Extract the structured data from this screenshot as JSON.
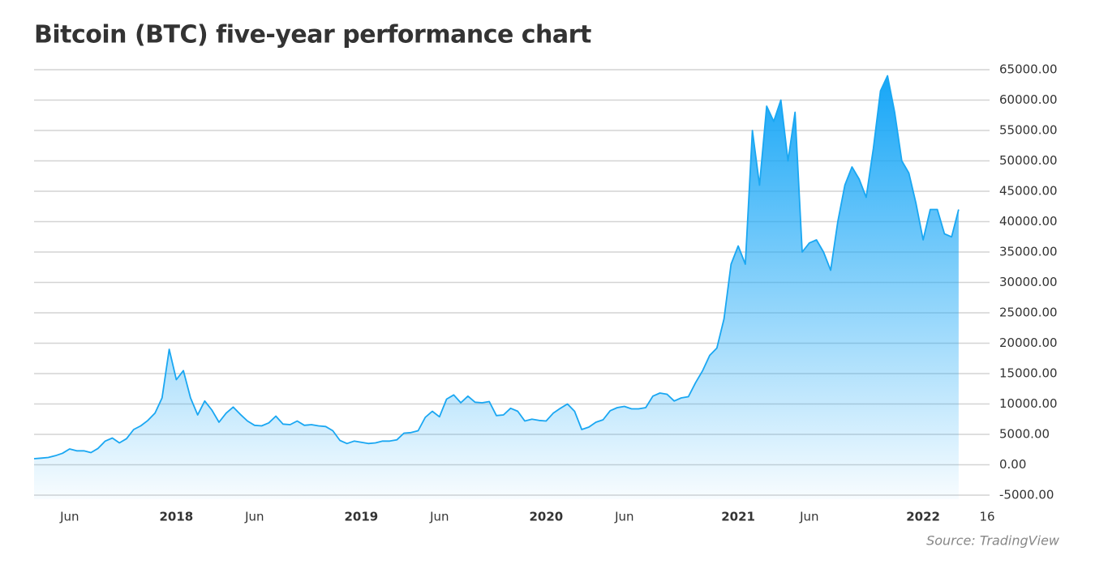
{
  "chart_data": {
    "type": "area",
    "title": "Bitcoin (BTC) five-year performance chart",
    "source": "Source: TradingView",
    "color": "#1aa7f2",
    "categories": [
      null,
      null,
      null,
      null,
      null,
      "Jun",
      null,
      null,
      null,
      null,
      null,
      null,
      null,
      null,
      null,
      null,
      null,
      null,
      null,
      null,
      "2018",
      null,
      null,
      null,
      null,
      null,
      null,
      null,
      null,
      null,
      null,
      "Jun",
      null,
      null,
      null,
      null,
      null,
      null,
      null,
      null,
      null,
      null,
      null,
      null,
      null,
      null,
      "2019",
      null,
      null,
      null,
      null,
      null,
      null,
      null,
      null,
      null,
      null,
      "Jun",
      null,
      null,
      null,
      null,
      null,
      null,
      null,
      null,
      null,
      null,
      null,
      null,
      null,
      null,
      "2020",
      null,
      null,
      null,
      null,
      null,
      null,
      null,
      null,
      null,
      null,
      "Jun",
      null,
      null,
      null,
      null,
      null,
      null,
      null,
      null,
      null,
      null,
      null,
      null,
      null,
      null,
      null,
      "2021",
      null,
      null,
      null,
      null,
      null,
      null,
      null,
      null,
      null,
      "Jun",
      null,
      null,
      null,
      null,
      null,
      null,
      null,
      null,
      null,
      null,
      null,
      null,
      null,
      null,
      null,
      "2022",
      null,
      null,
      null,
      null,
      null,
      null,
      null,
      null,
      "16"
    ],
    "values": [
      1000,
      1100,
      1200,
      1500,
      1900,
      2600,
      2300,
      2300,
      2000,
      2700,
      3900,
      4400,
      3600,
      4300,
      5800,
      6400,
      7300,
      8500,
      11000,
      19000,
      14000,
      15500,
      11000,
      8200,
      10500,
      9000,
      7000,
      8500,
      9500,
      8300,
      7200,
      6500,
      6400,
      6900,
      8000,
      6700,
      6600,
      7200,
      6500,
      6600,
      6400,
      6300,
      5600,
      4000,
      3500,
      3900,
      3700,
      3500,
      3600,
      3900,
      3900,
      4100,
      5200,
      5300,
      5600,
      7800,
      8800,
      7900,
      10800,
      11500,
      10200,
      11300,
      10300,
      10200,
      10400,
      8100,
      8200,
      9300,
      8800,
      7200,
      7500,
      7300,
      7200,
      8500,
      9300,
      10000,
      8800,
      5800,
      6200,
      7000,
      7400,
      8900,
      9400,
      9600,
      9200,
      9200,
      9400,
      11300,
      11800,
      11600,
      10500,
      11000,
      11200,
      13500,
      15500,
      18000,
      19200,
      24000,
      33000,
      36000,
      33000,
      55000,
      46000,
      59000,
      56500,
      60000,
      50000,
      58000,
      35000,
      36500,
      37000,
      35000,
      32000,
      40000,
      46000,
      49000,
      47000,
      44000,
      52000,
      61500,
      64000,
      58000,
      50000,
      48000,
      43000,
      37000,
      42000,
      42000,
      38000,
      37500,
      42000,
      null,
      null,
      null,
      null
    ],
    "ylim": [
      -5000,
      65000
    ],
    "yticks": [
      {
        "value": -5000,
        "label": "-5000.00"
      },
      {
        "value": 0,
        "label": "0.00"
      },
      {
        "value": 5000,
        "label": "5000.00"
      },
      {
        "value": 10000,
        "label": "10000.00"
      },
      {
        "value": 15000,
        "label": "15000.00"
      },
      {
        "value": 20000,
        "label": "20000.00"
      },
      {
        "value": 25000,
        "label": "25000.00"
      },
      {
        "value": 30000,
        "label": "30000.00"
      },
      {
        "value": 35000,
        "label": "35000.00"
      },
      {
        "value": 40000,
        "label": "40000.00"
      },
      {
        "value": 45000,
        "label": "45000.00"
      },
      {
        "value": 50000,
        "label": "50000.00"
      },
      {
        "value": 55000,
        "label": "55000.00"
      },
      {
        "value": 60000,
        "label": "60000.00"
      },
      {
        "value": 65000,
        "label": "65000.00"
      }
    ],
    "grid": true
  }
}
